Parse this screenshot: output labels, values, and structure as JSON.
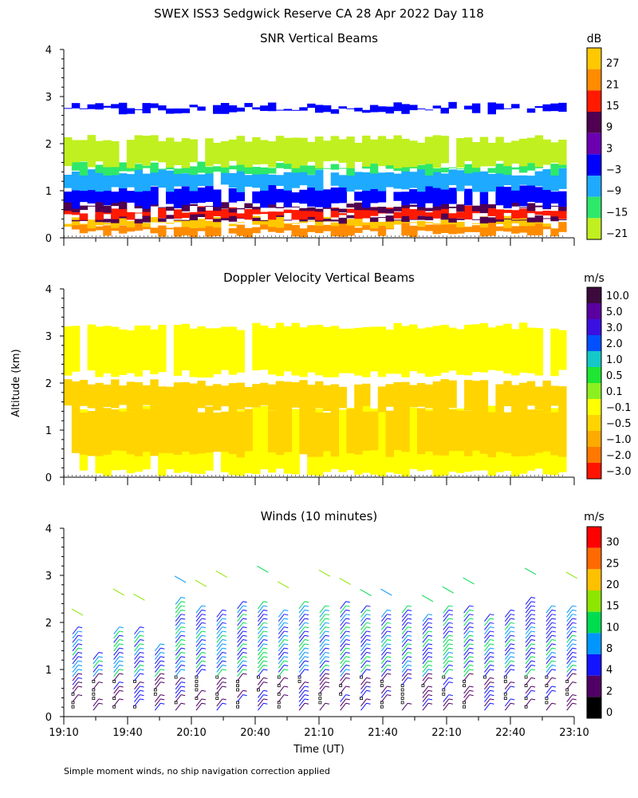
{
  "title": "SWEX ISS3 Sedgwick Reserve CA  28 Apr 2022 Day 118",
  "ylabel": "Altitude (km)",
  "xlabel": "Time (UT)",
  "footnote": "Simple moment winds, no ship navigation correction applied",
  "chart_data": [
    {
      "type": "heatmap",
      "title": "SNR Vertical Beams",
      "units": "dB",
      "x_range": [
        "19:10",
        "23:10"
      ],
      "ylim": [
        0,
        4
      ],
      "yticks": [
        "0",
        "1",
        "2",
        "3",
        "4"
      ],
      "colorbar": {
        "labels": [
          "27",
          "21",
          "15",
          "9",
          "3",
          "−3",
          "−9",
          "−15",
          "−21"
        ],
        "colors": [
          "#ffc800",
          "#ff8c00",
          "#ff1a00",
          "#500050",
          "#6a00b0",
          "#0000ff",
          "#1eaaff",
          "#2ee86a",
          "#c0f020"
        ]
      },
      "layers_km": [
        {
          "from": 0.1,
          "to": 0.28,
          "value": 21
        },
        {
          "from": 0.28,
          "to": 0.38,
          "value": 27
        },
        {
          "from": 0.38,
          "to": 0.45,
          "value": 9
        },
        {
          "from": 0.45,
          "to": 0.6,
          "value": 15
        },
        {
          "from": 0.6,
          "to": 0.7,
          "value": 9
        },
        {
          "from": 0.7,
          "to": 1.05,
          "value": -3
        },
        {
          "from": 1.05,
          "to": 1.4,
          "value": -9
        },
        {
          "from": 1.4,
          "to": 1.55,
          "value": -15
        },
        {
          "from": 1.55,
          "to": 2.1,
          "value": -21
        },
        {
          "from": 2.7,
          "to": 2.8,
          "value": -3
        }
      ]
    },
    {
      "type": "heatmap",
      "title": "Doppler Velocity Vertical Beams",
      "units": "m/s",
      "x_range": [
        "19:10",
        "23:10"
      ],
      "ylim": [
        0,
        4
      ],
      "yticks": [
        "0",
        "1",
        "2",
        "3",
        "4"
      ],
      "colorbar": {
        "labels": [
          "10.0",
          "5.0",
          "3.0",
          "2.0",
          "1.0",
          "0.5",
          "0.1",
          "−0.1",
          "−0.5",
          "−1.0",
          "−2.0",
          "−3.0"
        ],
        "colors": [
          "#3c0a3c",
          "#5a00a0",
          "#3a10e0",
          "#0050ff",
          "#14c8c8",
          "#1ee632",
          "#8cf020",
          "#ffff00",
          "#ffd400",
          "#ffaa00",
          "#ff7800",
          "#ff1400"
        ]
      },
      "layers_km": [
        {
          "from": 0.1,
          "to": 1.45,
          "value": -0.1
        },
        {
          "from": 0.5,
          "to": 1.45,
          "value": -0.5
        },
        {
          "from": 1.45,
          "to": 2.0,
          "value": -0.5
        },
        {
          "from": 2.2,
          "to": 3.2,
          "value": -0.1
        }
      ]
    },
    {
      "type": "barbs",
      "title": "Winds (10 minutes)",
      "units": "m/s",
      "xticks": [
        "19:10",
        "19:40",
        "20:10",
        "20:40",
        "21:10",
        "21:40",
        "22:10",
        "22:40",
        "23:10"
      ],
      "ylim": [
        0,
        4
      ],
      "yticks": [
        "0",
        "1",
        "2",
        "3",
        "4"
      ],
      "colorbar": {
        "labels": [
          "30",
          "25",
          "20",
          "15",
          "10",
          "8",
          "4",
          "2",
          "0"
        ],
        "colors": [
          "#ff0000",
          "#ff6a00",
          "#ffc000",
          "#8ce600",
          "#00dc50",
          "#0096ff",
          "#1414ff",
          "#500064",
          "#000000"
        ]
      },
      "profile_top_km": [
        1.9,
        1.3,
        1.9,
        1.9,
        1.5,
        2.5,
        2.3,
        2.2,
        2.4,
        2.4,
        2.2,
        2.4,
        2.3,
        2.4,
        2.3,
        2.2,
        2.3,
        2.1,
        2.3,
        2.3,
        2.1,
        2.2,
        2.5,
        2.3,
        2.3
      ]
    }
  ]
}
